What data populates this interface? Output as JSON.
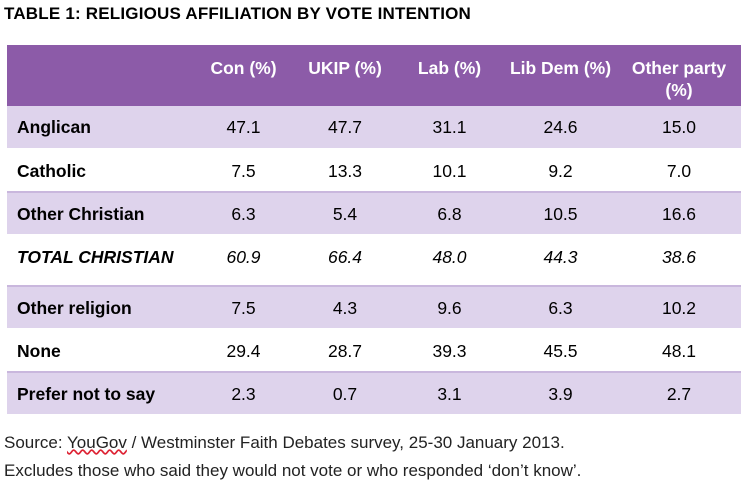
{
  "title": "TABLE 1: RELIGIOUS AFFILIATION BY VOTE INTENTION",
  "table": {
    "headers": [
      "",
      "Con (%)",
      "UKIP (%)",
      "Lab (%)",
      "Lib Dem (%)",
      "Other party (%)"
    ],
    "rows": [
      {
        "label": "Anglican",
        "values": [
          "47.1",
          "47.7",
          "31.1",
          "24.6",
          "15.0"
        ]
      },
      {
        "label": "Catholic",
        "values": [
          "7.5",
          "13.3",
          "10.1",
          "9.2",
          "7.0"
        ]
      },
      {
        "label": "Other Christian",
        "values": [
          "6.3",
          "5.4",
          "6.8",
          "10.5",
          "16.6"
        ]
      },
      {
        "label": "TOTAL CHRISTIAN",
        "values": [
          "60.9",
          "66.4",
          "48.0",
          "44.3",
          "38.6"
        ]
      },
      {
        "label": "Other religion",
        "values": [
          "7.5",
          "4.3",
          "9.6",
          "6.3",
          "10.2"
        ]
      },
      {
        "label": "None",
        "values": [
          "29.4",
          "28.7",
          "39.3",
          "45.5",
          "48.1"
        ]
      },
      {
        "label": "Prefer not to say",
        "values": [
          "2.3",
          "0.7",
          "3.1",
          "3.9",
          "2.7"
        ]
      }
    ]
  },
  "source": {
    "prefix": "Source: ",
    "link": "YouGov",
    "rest": " / Westminster Faith Debates survey, 25-30 January 2013."
  },
  "note": "Excludes those who said they would not vote or who responded ‘don’t know’.",
  "colors": {
    "header_bg": "#8c5ba8",
    "shade_row": "#ded3ec"
  }
}
